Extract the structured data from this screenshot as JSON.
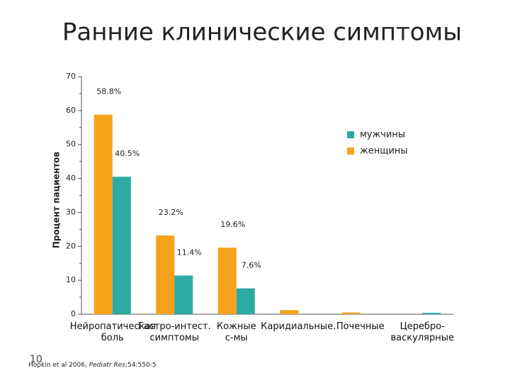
{
  "chart_data": {
    "type": "bar",
    "title": "Ранние клинические симптомы",
    "y_label": "Процент пациентов",
    "categories": [
      "Нейропатическая\nболь",
      "Гастро-интест.\nсимптомы",
      "Кожные\nс-мы",
      "Каридиальные.",
      "Почечные",
      "Церебро-\nваскулярные"
    ],
    "series": [
      {
        "name": "женщины",
        "color": "#f7a21b",
        "values": [
          58.8,
          23.2,
          19.6,
          1.2,
          0.5,
          0
        ],
        "value_labels": [
          "58.8%",
          "23.2%",
          "19.6%",
          null,
          null,
          null
        ]
      },
      {
        "name": "мужчины",
        "color": "#2eaaa5",
        "values": [
          40.5,
          11.4,
          7.6,
          0,
          0,
          0.4
        ],
        "value_labels": [
          "40.5%",
          "11.4%",
          "7.6%",
          null,
          null,
          null
        ]
      }
    ],
    "ylim": [
      0,
      70
    ],
    "yticks": [
      0,
      10,
      20,
      30,
      40,
      50,
      60,
      70
    ],
    "legend": "upper-right"
  },
  "footer": {
    "authors": "Hopkin et al 2006, ",
    "journal": "Pediatr Res",
    "rest": ";54:550-5",
    "slide_number": "10"
  }
}
